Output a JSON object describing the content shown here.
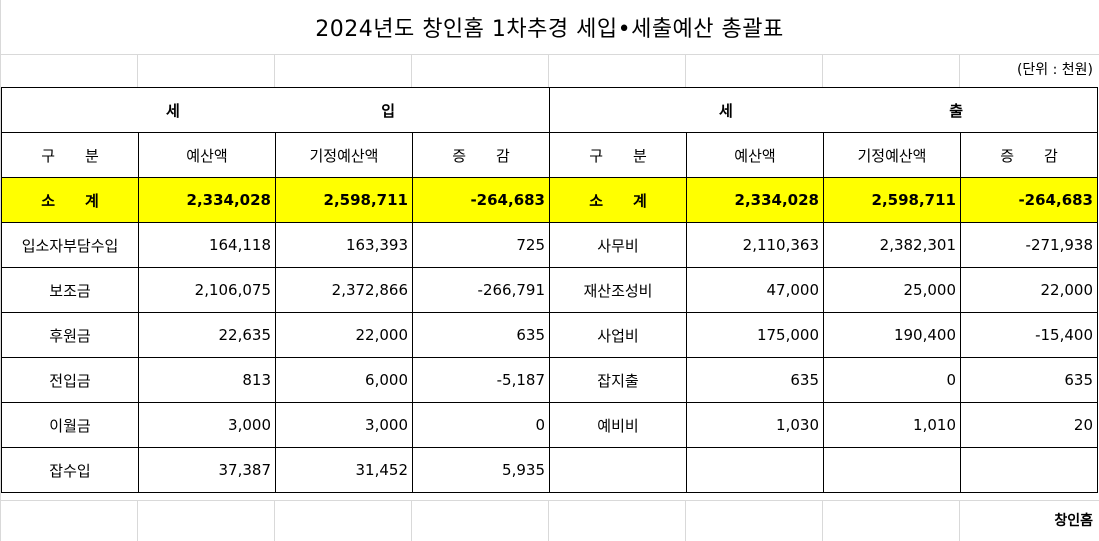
{
  "title": "2024년도 창인홈 1차추경 세입•세출예산 총괄표",
  "unit": "(단위 : 천원)",
  "revenue_header": [
    "세",
    "입"
  ],
  "expense_header": [
    "세",
    "출"
  ],
  "columns": {
    "category": "구　　분",
    "budget": "예산액",
    "prev_budget": "기정예산액",
    "change": "증　　감"
  },
  "subtotal": {
    "label": "소　　계",
    "rev_budget": "2,334,028",
    "rev_prev": "2,598,711",
    "rev_change": "-264,683",
    "exp_budget": "2,334,028",
    "exp_prev": "2,598,711",
    "exp_change": "-264,683"
  },
  "rows": [
    {
      "rev": [
        "입소자부담수입",
        "164,118",
        "163,393",
        "725"
      ],
      "exp": [
        "사무비",
        "2,110,363",
        "2,382,301",
        "-271,938"
      ]
    },
    {
      "rev": [
        "보조금",
        "2,106,075",
        "2,372,866",
        "-266,791"
      ],
      "exp": [
        "재산조성비",
        "47,000",
        "25,000",
        "22,000"
      ]
    },
    {
      "rev": [
        "후원금",
        "22,635",
        "22,000",
        "635"
      ],
      "exp": [
        "사업비",
        "175,000",
        "190,400",
        "-15,400"
      ]
    },
    {
      "rev": [
        "전입금",
        "813",
        "6,000",
        "-5,187"
      ],
      "exp": [
        "잡지출",
        "635",
        "0",
        "635"
      ]
    },
    {
      "rev": [
        "이월금",
        "3,000",
        "3,000",
        "0"
      ],
      "exp": [
        "예비비",
        "1,030",
        "1,010",
        "20"
      ]
    },
    {
      "rev": [
        "잡수입",
        "37,387",
        "31,452",
        "5,935"
      ],
      "exp": [
        "",
        "",
        "",
        ""
      ]
    }
  ],
  "signature": "창인홈"
}
